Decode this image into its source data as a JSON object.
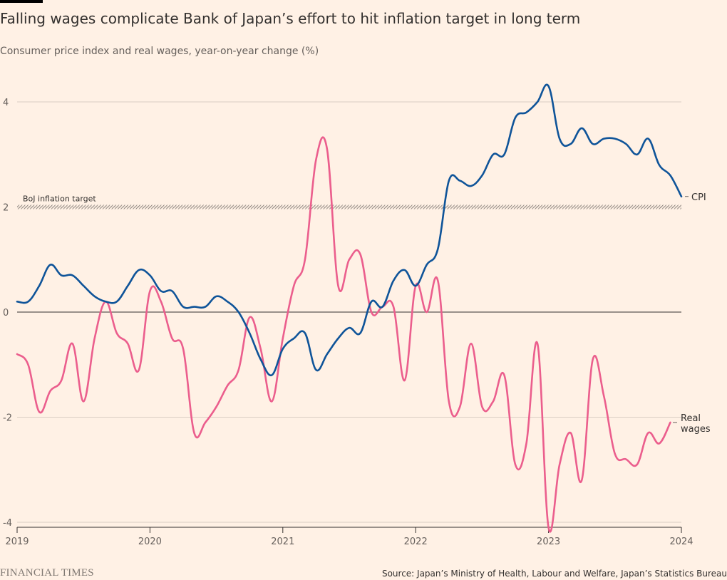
{
  "header": {
    "title": "Falling wages complicate Bank of Japan’s effort to hit inflation target in long term",
    "subtitle": "Consumer price index and real wages, year-on-year change (%)"
  },
  "footer": {
    "logo": "FINANCIAL TIMES",
    "source": "Source: Japan’s Ministry of Health, Labour and Welfare, Japan’s Statistics Bureau"
  },
  "colors": {
    "background": "#fff1e5",
    "cpi": "#0f5499",
    "real_wages": "#eb5e8d",
    "grid": "#d9cdc3",
    "zero_line": "#33302e",
    "target_band": "#66605c"
  },
  "chart_data": {
    "type": "line",
    "title": "Falling wages complicate Bank of Japan’s effort to hit inflation target in long term",
    "subtitle": "Consumer price index and real wages, year-on-year change (%)",
    "x_ticks": [
      "2019",
      "2020",
      "2021",
      "2022",
      "2023",
      "2024"
    ],
    "y_ticks": [
      "4",
      "2",
      "0",
      "-2",
      "-4"
    ],
    "y_tick_values": [
      4,
      2,
      0,
      -2,
      -4
    ],
    "xlim": [
      2019,
      2024
    ],
    "ylim": [
      -4,
      4.3
    ],
    "grid": true,
    "reference_line": {
      "label": "BoJ inflation target",
      "value": 2
    },
    "series": [
      {
        "name": "CPI",
        "label": "CPI",
        "color": "#0f5499",
        "x": [
          2019.0,
          2019.083,
          2019.167,
          2019.25,
          2019.333,
          2019.417,
          2019.5,
          2019.583,
          2019.667,
          2019.75,
          2019.833,
          2019.917,
          2020.0,
          2020.083,
          2020.167,
          2020.25,
          2020.333,
          2020.417,
          2020.5,
          2020.583,
          2020.667,
          2020.75,
          2020.833,
          2020.917,
          2021.0,
          2021.083,
          2021.167,
          2021.25,
          2021.333,
          2021.417,
          2021.5,
          2021.583,
          2021.667,
          2021.75,
          2021.833,
          2021.917,
          2022.0,
          2022.083,
          2022.167,
          2022.25,
          2022.333,
          2022.417,
          2022.5,
          2022.583,
          2022.667,
          2022.75,
          2022.833,
          2022.917,
          2023.0,
          2023.083,
          2023.167,
          2023.25,
          2023.333,
          2023.417,
          2023.5,
          2023.583,
          2023.667,
          2023.75,
          2023.833,
          2023.917,
          2024.0
        ],
        "values": [
          0.2,
          0.2,
          0.5,
          0.9,
          0.7,
          0.7,
          0.5,
          0.3,
          0.2,
          0.2,
          0.5,
          0.8,
          0.7,
          0.4,
          0.4,
          0.1,
          0.1,
          0.1,
          0.3,
          0.2,
          0.0,
          -0.4,
          -0.9,
          -1.2,
          -0.7,
          -0.5,
          -0.4,
          -1.1,
          -0.8,
          -0.5,
          -0.3,
          -0.4,
          0.2,
          0.1,
          0.6,
          0.8,
          0.5,
          0.9,
          1.2,
          2.5,
          2.5,
          2.4,
          2.6,
          3.0,
          3.0,
          3.7,
          3.8,
          4.0,
          4.3,
          3.3,
          3.2,
          3.5,
          3.2,
          3.3,
          3.3,
          3.2,
          3.0,
          3.3,
          2.8,
          2.6,
          2.2
        ]
      },
      {
        "name": "Real wages",
        "label": "Real wages",
        "color": "#eb5e8d",
        "x": [
          2019.0,
          2019.083,
          2019.167,
          2019.25,
          2019.333,
          2019.417,
          2019.5,
          2019.583,
          2019.667,
          2019.75,
          2019.833,
          2019.917,
          2020.0,
          2020.083,
          2020.167,
          2020.25,
          2020.333,
          2020.417,
          2020.5,
          2020.583,
          2020.667,
          2020.75,
          2020.833,
          2020.917,
          2021.0,
          2021.083,
          2021.167,
          2021.25,
          2021.333,
          2021.417,
          2021.5,
          2021.583,
          2021.667,
          2021.75,
          2021.833,
          2021.917,
          2022.0,
          2022.083,
          2022.167,
          2022.25,
          2022.333,
          2022.417,
          2022.5,
          2022.583,
          2022.667,
          2022.75,
          2022.833,
          2022.917,
          2023.0,
          2023.083,
          2023.167,
          2023.25,
          2023.333,
          2023.417,
          2023.5,
          2023.583,
          2023.667,
          2023.75,
          2023.833,
          2023.917
        ],
        "values": [
          -0.8,
          -1.0,
          -1.9,
          -1.5,
          -1.3,
          -0.6,
          -1.7,
          -0.5,
          0.2,
          -0.4,
          -0.6,
          -1.1,
          0.4,
          0.2,
          -0.5,
          -0.7,
          -2.3,
          -2.1,
          -1.8,
          -1.4,
          -1.1,
          -0.1,
          -0.7,
          -1.7,
          -0.5,
          0.5,
          1.0,
          2.9,
          3.1,
          0.5,
          1.0,
          1.1,
          0.0,
          0.1,
          0.1,
          -1.3,
          0.5,
          0.0,
          0.6,
          -1.7,
          -1.8,
          -0.6,
          -1.8,
          -1.7,
          -1.2,
          -2.9,
          -2.5,
          -0.6,
          -4.1,
          -2.9,
          -2.3,
          -3.2,
          -0.9,
          -1.6,
          -2.7,
          -2.8,
          -2.9,
          -2.3,
          -2.5,
          -2.1
        ]
      }
    ]
  }
}
